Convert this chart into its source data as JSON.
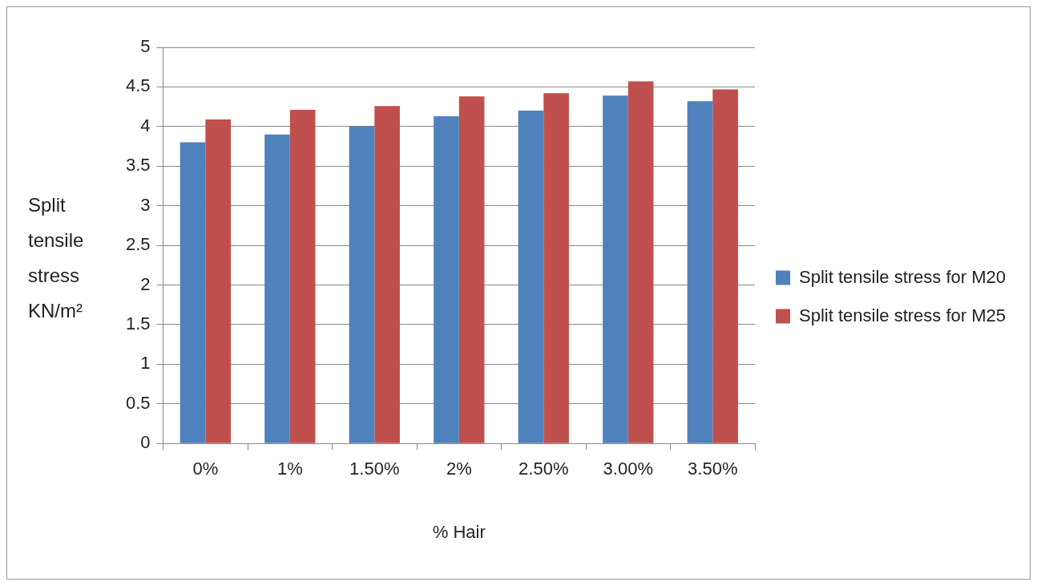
{
  "chart_data": {
    "type": "bar",
    "xlabel": "% Hair",
    "ylabel": "Split tensile stress KN/m²",
    "categories": [
      "0%",
      "1%",
      "1.50%",
      "2%",
      "2.50%",
      "3.00%",
      "3.50%"
    ],
    "series": [
      {
        "name": "Split tensile stress for M20",
        "color": "#4f81bd",
        "values": [
          3.8,
          3.9,
          4.0,
          4.13,
          4.2,
          4.39,
          4.32
        ]
      },
      {
        "name": "Split tensile stress for M25",
        "color": "#c0504d",
        "values": [
          4.09,
          4.21,
          4.26,
          4.38,
          4.42,
          4.57,
          4.47
        ]
      }
    ],
    "ylim": [
      0,
      5
    ],
    "yticks": [
      0,
      0.5,
      1,
      1.5,
      2,
      2.5,
      3,
      3.5,
      4,
      4.5,
      5
    ],
    "grid": "y",
    "legend": "right"
  }
}
